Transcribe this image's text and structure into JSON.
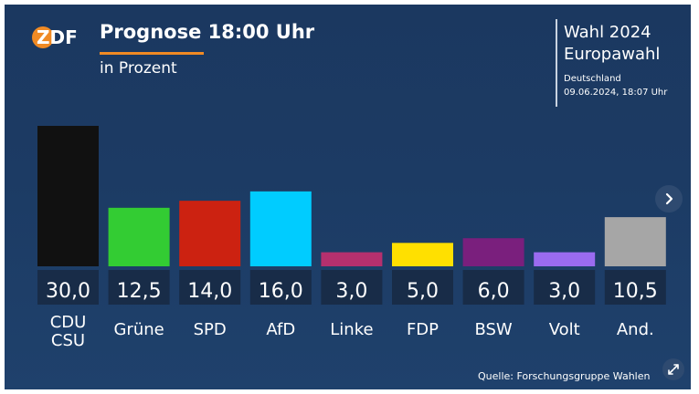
{
  "brand": {
    "logo_text": "ZDF",
    "colors": {
      "orange": "#f08a24"
    }
  },
  "header": {
    "title": "Prognose 18:00 Uhr",
    "subtitle": "in Prozent"
  },
  "info": {
    "line1": "Wahl 2024",
    "line2": "Europawahl",
    "region": "Deutschland",
    "date": "09.06.2024, 18:07 Uhr"
  },
  "chart_data": {
    "type": "bar",
    "title": "Prognose 18:00 Uhr",
    "subtitle": "in Prozent",
    "categories": [
      [
        "CDU",
        "CSU"
      ],
      [
        "Grüne"
      ],
      [
        "SPD"
      ],
      [
        "AfD"
      ],
      [
        "Linke"
      ],
      [
        "FDP"
      ],
      [
        "BSW"
      ],
      [
        "Volt"
      ],
      [
        "And."
      ]
    ],
    "values": [
      30.0,
      12.5,
      14.0,
      16.0,
      3.0,
      5.0,
      6.0,
      3.0,
      10.5
    ],
    "value_labels": [
      "30,0",
      "12,5",
      "14,0",
      "16,0",
      "3,0",
      "5,0",
      "6,0",
      "3,0",
      "10,5"
    ],
    "colors": [
      "#111111",
      "#33cc33",
      "#cc2211",
      "#00ccff",
      "#b5306e",
      "#ffe000",
      "#7a1f7d",
      "#9a6bf0",
      "#a6a6a6"
    ],
    "ylim": [
      0,
      30
    ],
    "grid": false
  },
  "footer": {
    "source": "Quelle: Forschungsgruppe Wahlen"
  },
  "controls": {
    "next_icon": "chevron-right-icon",
    "expand_icon": "expand-icon"
  }
}
